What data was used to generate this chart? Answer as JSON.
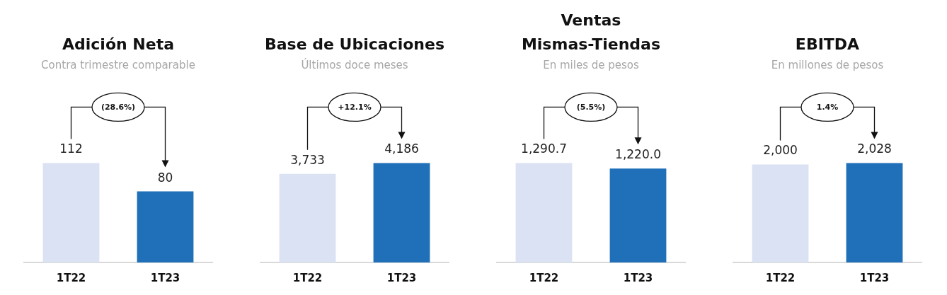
{
  "chart_data": [
    {
      "type": "bar",
      "title": "Adición Neta",
      "subtitle": "Contra trimestre comparable",
      "categories": [
        "1T22",
        "1T23"
      ],
      "values": [
        112,
        80
      ],
      "colors": [
        "#dae2f3",
        "#1f70b8"
      ],
      "value_labels": [
        "112",
        "80"
      ],
      "annotations": [
        "(28.6%)"
      ]
    },
    {
      "type": "bar",
      "title": "Base de Ubicaciones",
      "subtitle": "Últimos doce meses",
      "categories": [
        "1T22",
        "1T23"
      ],
      "values": [
        3733,
        4186
      ],
      "colors": [
        "#dae2f3",
        "#1f70b8"
      ],
      "value_labels": [
        "3,733",
        "4,186"
      ],
      "annotations": [
        "+12.1%"
      ]
    },
    {
      "type": "bar",
      "title": "Ventas\nMismas-Tiendas",
      "subtitle": "En miles de pesos",
      "categories": [
        "1T22",
        "1T23"
      ],
      "values": [
        1290.7,
        1220.0
      ],
      "colors": [
        "#dae2f3",
        "#1f70b8"
      ],
      "value_labels": [
        "1,290.7",
        "1,220.0"
      ],
      "annotations": [
        "(5.5%)"
      ]
    },
    {
      "type": "bar",
      "title": "EBITDA",
      "subtitle": "En millones de pesos",
      "categories": [
        "1T22",
        "1T23"
      ],
      "values": [
        2000,
        2028
      ],
      "colors": [
        "#dae2f3",
        "#1f70b8"
      ],
      "value_labels": [
        "2,000",
        "2,028"
      ],
      "annotations": [
        "1.4%"
      ]
    }
  ]
}
